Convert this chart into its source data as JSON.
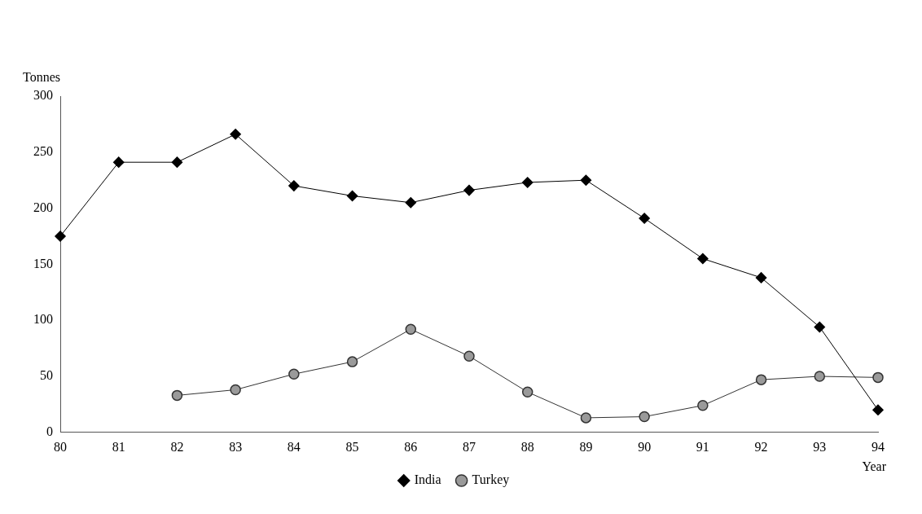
{
  "chart_data": {
    "type": "line",
    "xlabel": "Year",
    "ylabel": "Tonnes",
    "categories": [
      "80",
      "81",
      "82",
      "83",
      "84",
      "85",
      "86",
      "87",
      "88",
      "89",
      "90",
      "91",
      "92",
      "93",
      "94"
    ],
    "series": [
      {
        "name": "India",
        "color": "#000000",
        "marker": "diamond",
        "values": [
          175,
          241,
          241,
          266,
          220,
          211,
          205,
          216,
          223,
          225,
          191,
          155,
          138,
          94,
          20
        ]
      },
      {
        "name": "Turkey",
        "color": "#333333",
        "marker": "circle",
        "values": [
          null,
          null,
          33,
          38,
          52,
          63,
          92,
          68,
          36,
          13,
          14,
          24,
          47,
          50,
          49
        ]
      }
    ],
    "ylim": [
      0,
      300
    ],
    "yticks": [
      0,
      50,
      100,
      150,
      200,
      250,
      300
    ],
    "grid": false,
    "legend": "bottom",
    "line_style": "solid"
  }
}
